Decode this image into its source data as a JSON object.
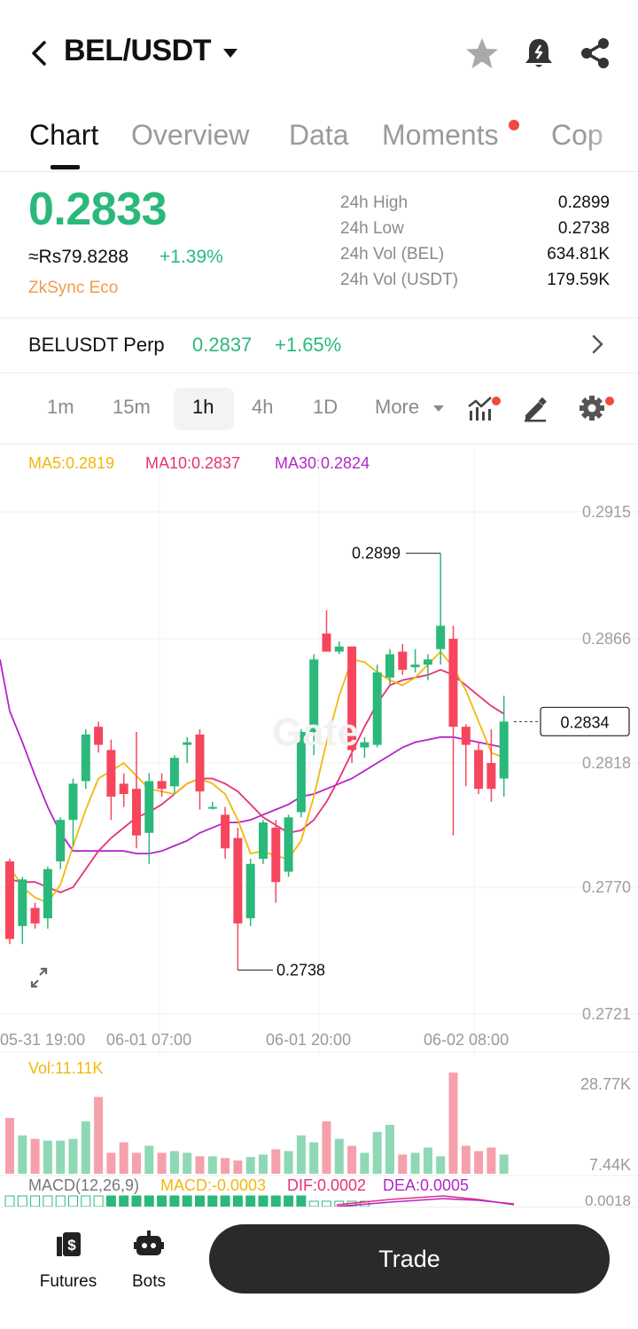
{
  "header": {
    "pair": "BEL/USDT",
    "icons": [
      "back-arrow-icon",
      "caret-down-icon",
      "star-icon",
      "alert-bell-icon",
      "share-icon"
    ]
  },
  "tabs": [
    "Chart",
    "Overview",
    "Data",
    "Moments",
    "Copy"
  ],
  "tabs_visible": [
    "Chart",
    "Overview",
    "Data",
    "Moments",
    "Cop"
  ],
  "price": {
    "last": "0.2833",
    "fiat": "≈Rs79.8288",
    "change": "+1.39%",
    "tag": "ZkSync Eco"
  },
  "stats": [
    {
      "label": "24h High",
      "value": "0.2899"
    },
    {
      "label": "24h Low",
      "value": "0.2738"
    },
    {
      "label": "24h Vol (BEL)",
      "value": "634.81K"
    },
    {
      "label": "24h Vol (USDT)",
      "value": "179.59K"
    }
  ],
  "perp": {
    "name": "BELUSDT Perp",
    "price": "0.2837",
    "change": "+1.65%"
  },
  "intervals": [
    "1m",
    "15m",
    "1h",
    "4h",
    "1D"
  ],
  "interval_active": "1h",
  "more_label": "More",
  "ma": {
    "ma5": "MA5:0.2819",
    "ma10": "MA10:0.2837",
    "ma30": "MA30:0.2824"
  },
  "colors": {
    "up": "#2bb87b",
    "down": "#f6465d",
    "ma5": "#f0b90b",
    "ma10": "#e6317a",
    "ma30": "#b326c9",
    "accent": "#2bb87b",
    "orange": "#f29a4a"
  },
  "chart_data": {
    "type": "candlestick",
    "y_ticks": [
      "0.2915",
      "0.2866",
      "0.2818",
      "0.2770",
      "0.2721"
    ],
    "x_ticks": [
      "05-31 19:00",
      "06-01 07:00",
      "06-01 20:00",
      "06-02 08:00"
    ],
    "ylim": [
      0.2721,
      0.2915
    ],
    "high_label": "0.2899",
    "low_label": "0.2738",
    "current_label": "0.2834",
    "candles": [
      {
        "o": 0.278,
        "h": 0.2781,
        "l": 0.2748,
        "c": 0.275
      },
      {
        "o": 0.2755,
        "h": 0.2774,
        "l": 0.2748,
        "c": 0.2773
      },
      {
        "o": 0.2762,
        "h": 0.2764,
        "l": 0.2754,
        "c": 0.2756
      },
      {
        "o": 0.2758,
        "h": 0.2778,
        "l": 0.2754,
        "c": 0.2777
      },
      {
        "o": 0.278,
        "h": 0.2797,
        "l": 0.2777,
        "c": 0.2796
      },
      {
        "o": 0.2796,
        "h": 0.2812,
        "l": 0.2786,
        "c": 0.281
      },
      {
        "o": 0.2811,
        "h": 0.2831,
        "l": 0.2808,
        "c": 0.2829
      },
      {
        "o": 0.2832,
        "h": 0.2834,
        "l": 0.2822,
        "c": 0.2825
      },
      {
        "o": 0.2823,
        "h": 0.2827,
        "l": 0.2796,
        "c": 0.2805
      },
      {
        "o": 0.281,
        "h": 0.2814,
        "l": 0.2801,
        "c": 0.2806
      },
      {
        "o": 0.2808,
        "h": 0.283,
        "l": 0.2785,
        "c": 0.279
      },
      {
        "o": 0.2791,
        "h": 0.2814,
        "l": 0.2779,
        "c": 0.2811
      },
      {
        "o": 0.2811,
        "h": 0.2814,
        "l": 0.2805,
        "c": 0.2808
      },
      {
        "o": 0.2809,
        "h": 0.2821,
        "l": 0.2806,
        "c": 0.282
      },
      {
        "o": 0.2825,
        "h": 0.2828,
        "l": 0.2818,
        "c": 0.2826
      },
      {
        "o": 0.2829,
        "h": 0.2831,
        "l": 0.28,
        "c": 0.2807
      },
      {
        "o": 0.2801,
        "h": 0.2803,
        "l": 0.28,
        "c": 0.2801
      },
      {
        "o": 0.2798,
        "h": 0.2801,
        "l": 0.2781,
        "c": 0.2785
      },
      {
        "o": 0.2789,
        "h": 0.2793,
        "l": 0.2738,
        "c": 0.2756
      },
      {
        "o": 0.2758,
        "h": 0.2781,
        "l": 0.2755,
        "c": 0.2779
      },
      {
        "o": 0.2781,
        "h": 0.2796,
        "l": 0.2779,
        "c": 0.2795
      },
      {
        "o": 0.2793,
        "h": 0.2796,
        "l": 0.2764,
        "c": 0.2772
      },
      {
        "o": 0.2776,
        "h": 0.2798,
        "l": 0.2774,
        "c": 0.2797
      },
      {
        "o": 0.2799,
        "h": 0.2831,
        "l": 0.2797,
        "c": 0.283
      },
      {
        "o": 0.283,
        "h": 0.286,
        "l": 0.2821,
        "c": 0.2858
      },
      {
        "o": 0.2868,
        "h": 0.2877,
        "l": 0.2861,
        "c": 0.2861
      },
      {
        "o": 0.2861,
        "h": 0.2865,
        "l": 0.286,
        "c": 0.2863
      },
      {
        "o": 0.2863,
        "h": 0.2863,
        "l": 0.2818,
        "c": 0.2823
      },
      {
        "o": 0.2824,
        "h": 0.2828,
        "l": 0.282,
        "c": 0.2826
      },
      {
        "o": 0.2825,
        "h": 0.2856,
        "l": 0.2824,
        "c": 0.2853
      },
      {
        "o": 0.2851,
        "h": 0.2862,
        "l": 0.2848,
        "c": 0.286
      },
      {
        "o": 0.2861,
        "h": 0.2864,
        "l": 0.2852,
        "c": 0.2854
      },
      {
        "o": 0.2855,
        "h": 0.2862,
        "l": 0.2853,
        "c": 0.2856
      },
      {
        "o": 0.2856,
        "h": 0.286,
        "l": 0.285,
        "c": 0.2858
      },
      {
        "o": 0.2862,
        "h": 0.2899,
        "l": 0.2856,
        "c": 0.2871
      },
      {
        "o": 0.2866,
        "h": 0.2871,
        "l": 0.279,
        "c": 0.2832
      },
      {
        "o": 0.2832,
        "h": 0.2833,
        "l": 0.2809,
        "c": 0.2825
      },
      {
        "o": 0.2823,
        "h": 0.2826,
        "l": 0.2806,
        "c": 0.2808
      },
      {
        "o": 0.2818,
        "h": 0.2831,
        "l": 0.2803,
        "c": 0.2808
      },
      {
        "o": 0.2812,
        "h": 0.2844,
        "l": 0.2805,
        "c": 0.2834
      }
    ],
    "ma5": [
      0.2778,
      0.277,
      0.2766,
      0.2764,
      0.2771,
      0.2786,
      0.28,
      0.2812,
      0.2815,
      0.2818,
      0.2813,
      0.2808,
      0.2807,
      0.2806,
      0.281,
      0.2812,
      0.281,
      0.2806,
      0.2796,
      0.2783,
      0.2784,
      0.2782,
      0.2781,
      0.2788,
      0.2805,
      0.2826,
      0.2844,
      0.2858,
      0.2857,
      0.2853,
      0.285,
      0.2848,
      0.2851,
      0.2856,
      0.2861,
      0.2855,
      0.2846,
      0.2834,
      0.2822,
      0.282
    ],
    "ma10": [
      0.2773,
      0.2772,
      0.2772,
      0.277,
      0.2768,
      0.277,
      0.2777,
      0.2784,
      0.2789,
      0.2793,
      0.2797,
      0.2799,
      0.2802,
      0.2806,
      0.281,
      0.2812,
      0.2812,
      0.281,
      0.2807,
      0.2802,
      0.2797,
      0.2794,
      0.2791,
      0.2792,
      0.2796,
      0.2803,
      0.2812,
      0.2822,
      0.2832,
      0.2841,
      0.2848,
      0.285,
      0.2851,
      0.2852,
      0.2854,
      0.2852,
      0.2848,
      0.2844,
      0.284,
      0.2837
    ],
    "ma30": [
      0.2838,
      0.2826,
      0.2813,
      0.2801,
      0.2791,
      0.2784,
      0.2784,
      0.2784,
      0.2784,
      0.2784,
      0.2783,
      0.2783,
      0.2784,
      0.2786,
      0.2788,
      0.2791,
      0.2793,
      0.2795,
      0.2795,
      0.2796,
      0.2798,
      0.28,
      0.2802,
      0.2805,
      0.2806,
      0.2808,
      0.281,
      0.2812,
      0.2815,
      0.2818,
      0.2821,
      0.2824,
      0.2826,
      0.2827,
      0.2828,
      0.2828,
      0.2827,
      0.2826,
      0.2825,
      0.2824
    ]
  },
  "volume": {
    "label": "Vol:11.11K",
    "y_ticks": [
      "28.77K",
      "7.44K"
    ],
    "ylim": [
      0,
      30000
    ],
    "values": [
      16000,
      11000,
      10000,
      9500,
      9500,
      10000,
      15000,
      22000,
      6000,
      9000,
      6000,
      8000,
      6000,
      6500,
      6000,
      5000,
      5000,
      4500,
      3800,
      4800,
      5500,
      7000,
      6500,
      11000,
      9000,
      15000,
      10000,
      8000,
      6000,
      12000,
      14000,
      5500,
      6000,
      7500,
      5000,
      29000,
      8000,
      6500,
      7500,
      5500
    ]
  },
  "macd": {
    "label": "MACD(12,26,9)",
    "macd": "MACD:-0.0003",
    "dif": "DIF:0.0002",
    "dea": "DEA:0.0005",
    "y_tick": "0.0018"
  },
  "bottom_nav": [
    {
      "label": "Futures",
      "icon": "futures-dollar-icon"
    },
    {
      "label": "Bots",
      "icon": "bot-icon"
    }
  ],
  "trade_label": "Trade"
}
